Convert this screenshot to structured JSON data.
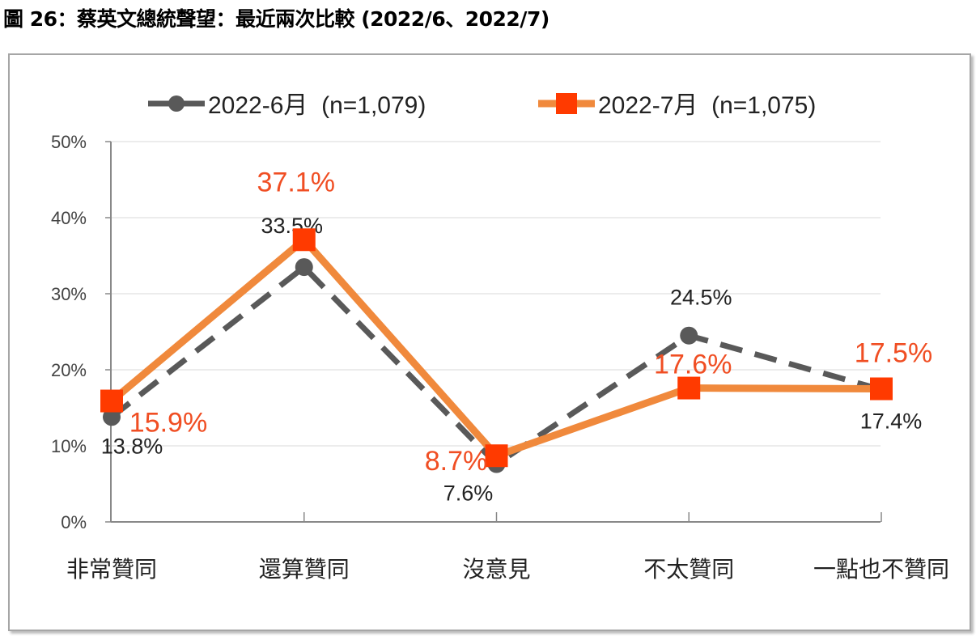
{
  "title": "圖 26：蔡英文總統聲望：最近兩次比較 (2022/6、2022/7)",
  "chart_data": {
    "type": "line",
    "title": "圖 26：蔡英文總統聲望：最近兩次比較 (2022/6、2022/7)",
    "categories": [
      "非常贊同",
      "還算贊同",
      "沒意見",
      "不太贊同",
      "一點也不贊同"
    ],
    "series": [
      {
        "name": "2022-6月  (n=1,079)",
        "values": [
          13.8,
          33.5,
          7.6,
          24.5,
          17.4
        ],
        "labels": [
          "13.8%",
          "33.5%",
          "7.6%",
          "24.5%",
          "17.4%"
        ],
        "color": "#595959",
        "label_color": "#222222",
        "style": "dashed",
        "marker": "circle"
      },
      {
        "name": "2022-7月  (n=1,075)",
        "values": [
          15.9,
          37.1,
          8.7,
          17.6,
          17.5
        ],
        "labels": [
          "15.9%",
          "37.1%",
          "8.7%",
          "17.6%",
          "17.5%"
        ],
        "color": "#F0893C",
        "marker_color": "#FF3A00",
        "label_color": "#F04E23",
        "style": "solid",
        "marker": "square"
      }
    ],
    "yticks": [
      "0%",
      "10%",
      "20%",
      "30%",
      "40%",
      "50%"
    ],
    "ylim": [
      0,
      50
    ],
    "xlabel": "",
    "ylabel": "",
    "grid": true,
    "legend": "top"
  }
}
